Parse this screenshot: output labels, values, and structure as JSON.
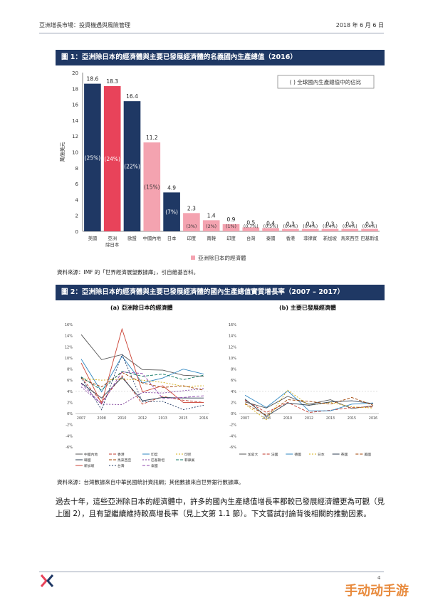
{
  "header": {
    "left": "亞洲增長市場：投資機遇與風險管理",
    "right": "2018 年 6 月 6 日"
  },
  "figure1": {
    "title": "圖 1：亞洲除日本的經濟體與主要已發展經濟體的名義國內生產總值（2016）",
    "note": "(   ) 全球國內生產總值中的佔比",
    "legend": "亞洲除日本的經濟體",
    "source": "資料來源：IMF 的「世界經濟展望數據庫」，引自維基百科。"
  },
  "chart_data": [
    {
      "type": "bar",
      "ylabel": "萬億美元",
      "ylim": [
        0,
        20
      ],
      "yticks": [
        0,
        2,
        4,
        6,
        8,
        10,
        12,
        14,
        16,
        18,
        20
      ],
      "categories": [
        "美國",
        "亞洲除日本",
        "歐盟",
        "中國內地",
        "日本",
        "印度",
        "南韓",
        "印度",
        "台灣",
        "泰國",
        "香港",
        "菲律賓",
        "新加坡",
        "馬來西亞",
        "巴基斯坦"
      ],
      "values": [
        18.6,
        18.3,
        16.4,
        11.2,
        4.9,
        2.3,
        1.4,
        0.9,
        0.5,
        0.4,
        0.3,
        0.3,
        0.3,
        0.3,
        0.3
      ],
      "value_labels": [
        "18.6",
        "18.3",
        "16.4",
        "11.2",
        "4.9",
        "2.3",
        "1.4",
        "0.9",
        "0.5",
        "0.4",
        "0.3",
        "0.3",
        "0.3",
        "0.3",
        "0.3"
      ],
      "shares": [
        "(25%)",
        "(24%)",
        "(22%)",
        "(15%)",
        "(7%)",
        "(3%)",
        "(2%)",
        "(1%)",
        "(0.7%)",
        "(0.5%)",
        "(0.4%)",
        "(0.4%)",
        "(0.4%)",
        "(0.4%)",
        "(0.4%)"
      ],
      "colors": [
        "#1f3864",
        "#e8435a",
        "#1f3864",
        "#f4a3b0",
        "#1f3864",
        "#f4a3b0",
        "#f4a3b0",
        "#f4a3b0",
        "#f4a3b0",
        "#f4a3b0",
        "#f4a3b0",
        "#f4a3b0",
        "#f4a3b0",
        "#f4a3b0",
        "#f4a3b0"
      ]
    },
    {
      "type": "line",
      "title": "(a) 亞洲除日本的經濟體",
      "ylim": [
        -6,
        16
      ],
      "yticks": [
        "-6%",
        "-4%",
        "-2%",
        "0%",
        "2%",
        "4%",
        "6%",
        "8%",
        "10%",
        "12%",
        "14%",
        "16%"
      ],
      "x": [
        "2007",
        "2008",
        "2010",
        "2012",
        "2013",
        "2015",
        "2016"
      ],
      "series": [
        {
          "name": "中國內地",
          "values": [
            14.2,
            9.7,
            10.6,
            7.9,
            7.8,
            6.9,
            6.7
          ]
        },
        {
          "name": "香港",
          "values": [
            6.5,
            2.1,
            6.8,
            1.7,
            3.1,
            2.4,
            2.0
          ]
        },
        {
          "name": "印度",
          "values": [
            9.8,
            3.9,
            10.3,
            5.5,
            6.4,
            8.0,
            7.1
          ]
        },
        {
          "name": "印尼",
          "values": [
            6.3,
            6.0,
            6.2,
            6.0,
            5.6,
            4.9,
            5.0
          ]
        },
        {
          "name": "韓國",
          "values": [
            5.5,
            2.8,
            6.5,
            2.3,
            2.9,
            2.8,
            2.8
          ]
        },
        {
          "name": "馬來西亞",
          "values": [
            6.3,
            4.8,
            7.4,
            5.5,
            4.7,
            5.0,
            4.2
          ]
        },
        {
          "name": "巴基斯坦",
          "values": [
            4.8,
            1.7,
            1.6,
            3.8,
            3.7,
            4.1,
            4.5
          ]
        },
        {
          "name": "菲律賓",
          "values": [
            6.6,
            4.2,
            7.6,
            6.7,
            7.1,
            6.1,
            6.9
          ]
        },
        {
          "name": "新加坡",
          "values": [
            9.1,
            1.8,
            15.2,
            3.9,
            5.0,
            2.0,
            2.0
          ]
        },
        {
          "name": "台灣",
          "values": [
            6.5,
            0.7,
            10.6,
            2.1,
            2.2,
            0.7,
            1.5
          ]
        },
        {
          "name": "泰國",
          "values": [
            5.4,
            1.7,
            7.5,
            7.2,
            2.7,
            2.9,
            3.2
          ]
        }
      ]
    },
    {
      "type": "line",
      "title": "(b) 主要已發展經濟體",
      "ylim": [
        -6,
        16
      ],
      "yticks": [
        "-6%",
        "-4%",
        "-2%",
        "0%",
        "2%",
        "4%",
        "6%",
        "8%",
        "10%",
        "12%",
        "14%",
        "16%"
      ],
      "x": [
        "2007",
        "2008",
        "2010",
        "2012",
        "2013",
        "2015",
        "2016"
      ],
      "series": [
        {
          "name": "加拿大",
          "values": [
            2.1,
            1.0,
            3.1,
            1.7,
            2.5,
            0.9,
            1.4
          ]
        },
        {
          "name": "法國",
          "values": [
            2.4,
            0.2,
            2.0,
            0.2,
            0.6,
            1.1,
            1.2
          ]
        },
        {
          "name": "德國",
          "values": [
            3.3,
            1.1,
            4.1,
            0.5,
            0.5,
            1.7,
            1.9
          ]
        },
        {
          "name": "日本",
          "values": [
            1.7,
            -1.1,
            4.2,
            1.5,
            2.0,
            1.2,
            1.0
          ]
        },
        {
          "name": "英國",
          "values": [
            2.6,
            -0.5,
            1.9,
            1.5,
            2.1,
            2.3,
            1.8
          ]
        },
        {
          "name": "美國",
          "values": [
            1.8,
            -0.3,
            2.5,
            2.2,
            1.7,
            2.9,
            1.5
          ]
        }
      ]
    }
  ],
  "figure2": {
    "title": "圖 2：亞洲除日本的經濟體與主要已發展經濟體的國內生產總值實質增長率（2007 – 2017）",
    "source": "資料來源：台灣數據來自中華民國統計資訊網；其他數據來自世界銀行數據庫。"
  },
  "paragraph": "過去十年，這些亞洲除日本的經濟體中，許多的國內生產總值增長率都較已發展經濟體更為可觀（見上圖 2），且有望繼續維持較高增長率（見上文第 1.1 節）。下文嘗試討論背後相關的推動因素。",
  "page_number": "4",
  "watermark": "手动动手游",
  "colors": {
    "navy": "#1f3864",
    "red": "#e8435a",
    "pink": "#f4a3b0"
  }
}
